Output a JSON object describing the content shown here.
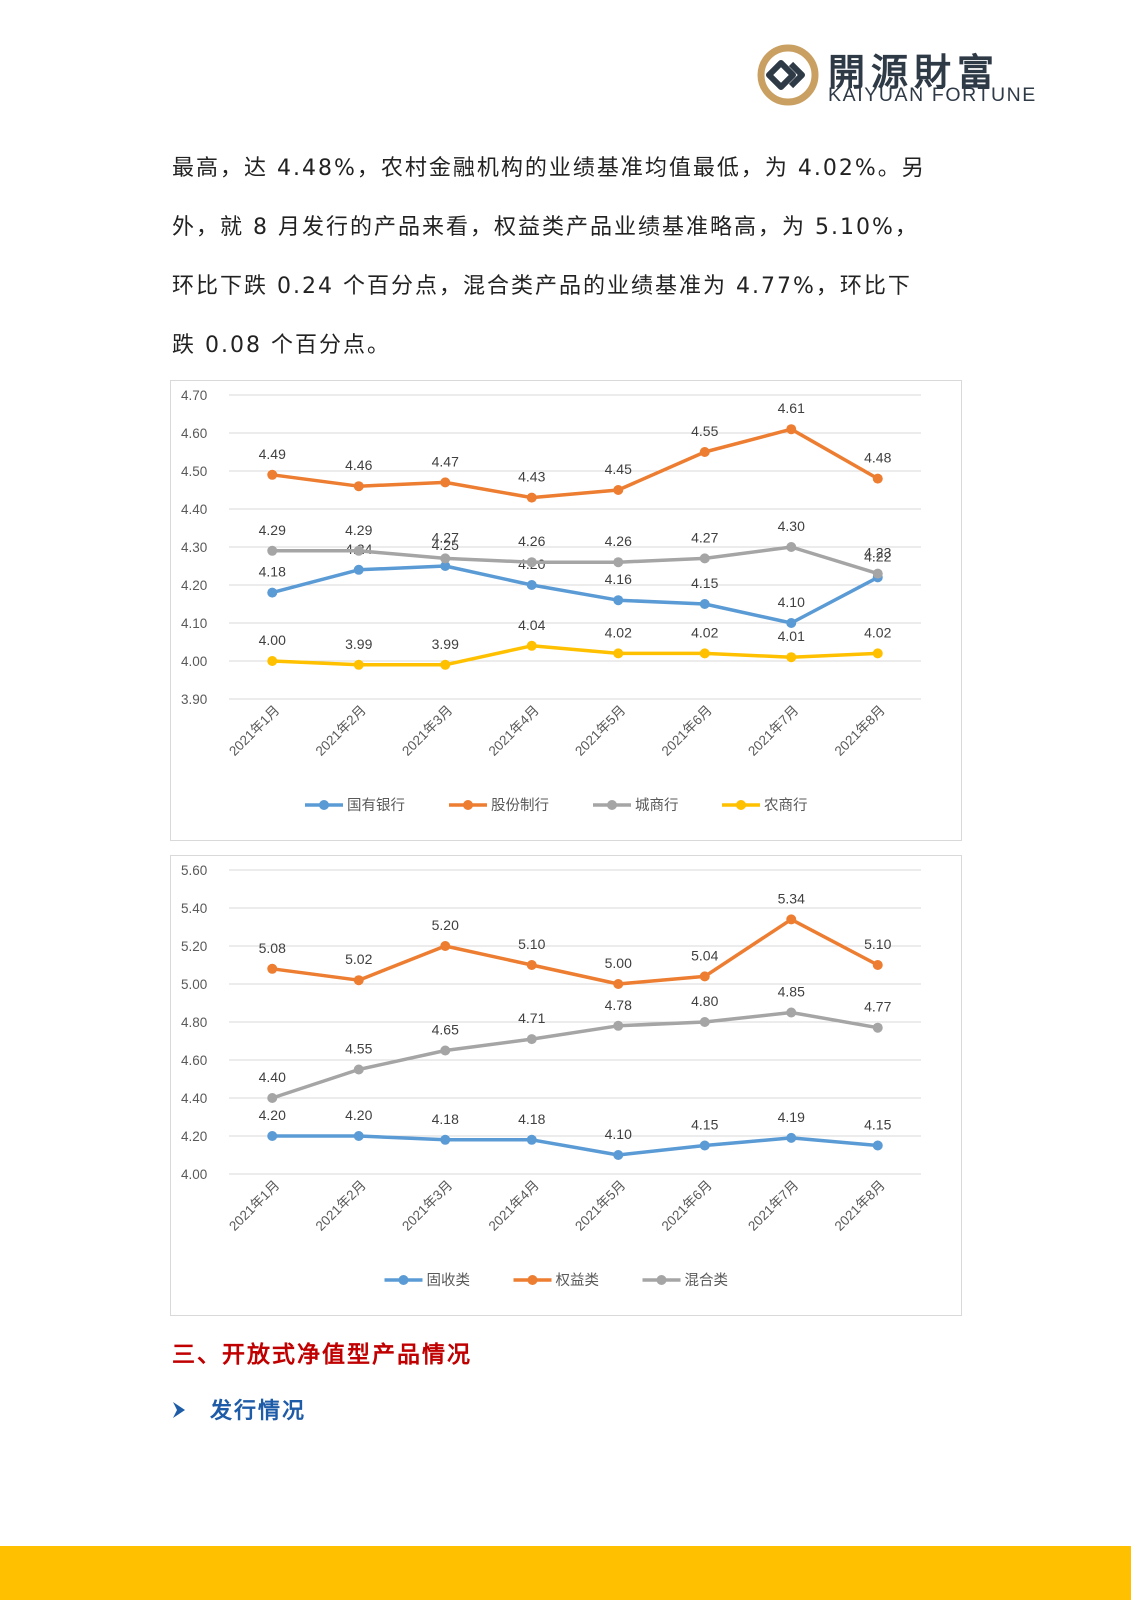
{
  "logo": {
    "name_cn": "開源財富",
    "name_en": "KAIYUAN FORTUNE",
    "colors": {
      "ring": "#c9a062",
      "mark": "#2f3a47"
    }
  },
  "paragraph": [
    "最高，达 4.48%，农村金融机构的业绩基准均值最低，为 4.02%。另",
    "外，就 8 月发行的产品来看，权益类产品业绩基准略高，为 5.10%，",
    "环比下跌 0.24 个百分点，混合类产品的业绩基准为 4.77%，环比下",
    "跌 0.08 个百分点。"
  ],
  "chart_data": [
    {
      "type": "line",
      "categories": [
        "2021年1月",
        "2021年2月",
        "2021年3月",
        "2021年4月",
        "2021年5月",
        "2021年6月",
        "2021年7月",
        "2021年8月"
      ],
      "ylim": [
        3.9,
        4.7
      ],
      "yticks": [
        "4.70",
        "4.60",
        "4.50",
        "4.40",
        "4.30",
        "4.20",
        "4.10",
        "4.00",
        "3.90"
      ],
      "grid": true,
      "legend": "bottom",
      "series": [
        {
          "name": "国有银行",
          "color": "#5b9bd5",
          "values": [
            4.18,
            4.24,
            4.25,
            4.2,
            4.16,
            4.15,
            4.1,
            4.22
          ]
        },
        {
          "name": "股份制行",
          "color": "#ed7d31",
          "values": [
            4.49,
            4.46,
            4.47,
            4.43,
            4.45,
            4.55,
            4.61,
            4.48
          ]
        },
        {
          "name": "城商行",
          "color": "#a5a5a5",
          "values": [
            4.29,
            4.29,
            4.27,
            4.26,
            4.26,
            4.27,
            4.3,
            4.23
          ]
        },
        {
          "name": "农商行",
          "color": "#ffc000",
          "values": [
            4.0,
            3.99,
            3.99,
            4.04,
            4.02,
            4.02,
            4.01,
            4.02
          ]
        }
      ]
    },
    {
      "type": "line",
      "categories": [
        "2021年1月",
        "2021年2月",
        "2021年3月",
        "2021年4月",
        "2021年5月",
        "2021年6月",
        "2021年7月",
        "2021年8月"
      ],
      "ylim": [
        4.0,
        5.6
      ],
      "yticks": [
        "5.60",
        "5.40",
        "5.20",
        "5.00",
        "4.80",
        "4.60",
        "4.40",
        "4.20",
        "4.00"
      ],
      "grid": true,
      "legend": "bottom",
      "series": [
        {
          "name": "固收类",
          "color": "#5b9bd5",
          "values": [
            4.2,
            4.2,
            4.18,
            4.18,
            4.1,
            4.15,
            4.19,
            4.15
          ]
        },
        {
          "name": "权益类",
          "color": "#ed7d31",
          "values": [
            5.08,
            5.02,
            5.2,
            5.1,
            5.0,
            5.04,
            5.34,
            5.1
          ]
        },
        {
          "name": "混合类",
          "color": "#a5a5a5",
          "values": [
            4.4,
            4.55,
            4.65,
            4.71,
            4.78,
            4.8,
            4.85,
            4.77
          ]
        }
      ]
    }
  ],
  "section_heading": "三、开放式净值型产品情况",
  "sub_heading": "发行情况",
  "footer_color": "#ffc000"
}
